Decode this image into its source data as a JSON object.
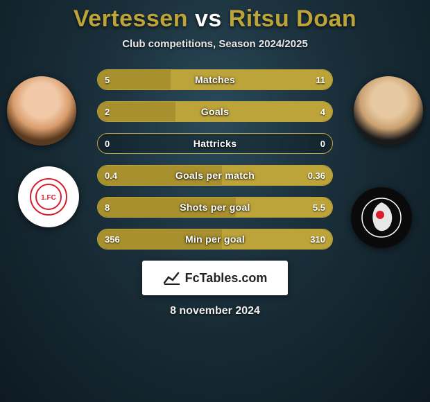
{
  "title": {
    "left": "Vertessen",
    "vs": "vs",
    "right": "Ritsu Doan"
  },
  "subtitle": "Club competitions, Season 2024/2025",
  "accent_color": "#bda43a",
  "bar_fill_left": "#a8902e",
  "bar_fill_right": "#bda43a",
  "background_colors": {
    "center": "#2a4a5a",
    "mid": "#1a2f3a",
    "edge": "#0d1a22"
  },
  "bars": [
    {
      "label": "Matches",
      "left_val": "5",
      "right_val": "11",
      "left_pct": 31,
      "right_pct": 69
    },
    {
      "label": "Goals",
      "left_val": "2",
      "right_val": "4",
      "left_pct": 33,
      "right_pct": 67
    },
    {
      "label": "Hattricks",
      "left_val": "0",
      "right_val": "0",
      "left_pct": 0,
      "right_pct": 0
    },
    {
      "label": "Goals per match",
      "left_val": "0.4",
      "right_val": "0.36",
      "left_pct": 53,
      "right_pct": 47
    },
    {
      "label": "Shots per goal",
      "left_val": "8",
      "right_val": "5.5",
      "left_pct": 59,
      "right_pct": 41
    },
    {
      "label": "Min per goal",
      "left_val": "356",
      "right_val": "310",
      "left_pct": 53,
      "right_pct": 47
    }
  ],
  "player_left": {
    "name": "Vertessen",
    "avatar_bg": "face1"
  },
  "player_right": {
    "name": "Ritsu Doan",
    "avatar_bg": "face2"
  },
  "club_left": {
    "name": "Union Berlin",
    "badge_bg": "#ffffff",
    "badge_accent": "#d81e2c"
  },
  "club_right": {
    "name": "SC Freiburg",
    "badge_bg": "#0a0a0a",
    "badge_accent": "#ffffff"
  },
  "branding": {
    "text": "FcTables.com",
    "icon": "chart-line-icon"
  },
  "date": "8 november 2024"
}
